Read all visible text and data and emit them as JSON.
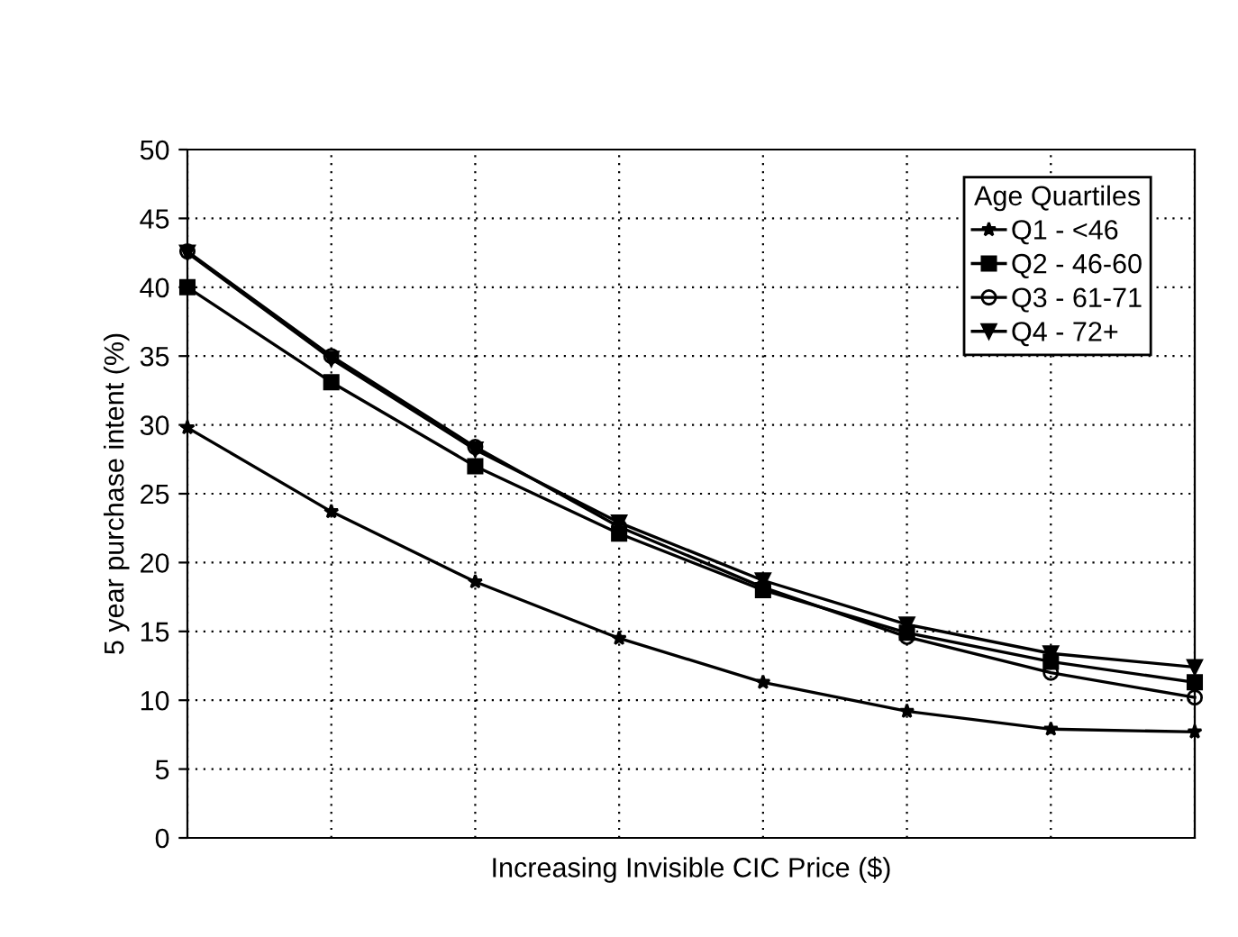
{
  "chart_data": {
    "type": "line",
    "xlabel": "Increasing Invisible CIC Price ($)",
    "ylabel": "5 year purchase intent (%)",
    "legend_title": "Age Quartiles",
    "legend": "top right",
    "grid": true,
    "categories": [
      null,
      null,
      null,
      null,
      null,
      null,
      null,
      null
    ],
    "ylim": [
      0,
      50
    ],
    "yticks": [
      0,
      5,
      10,
      15,
      20,
      25,
      30,
      35,
      40,
      45,
      50
    ],
    "series": [
      {
        "name": "Q1 - <46",
        "color": "#000000",
        "marker": "star",
        "values": [
          29.8,
          23.7,
          18.6,
          14.5,
          11.3,
          9.2,
          7.9,
          7.7
        ]
      },
      {
        "name": "Q2 - 46-60",
        "color": "#000000",
        "marker": "square",
        "values": [
          40,
          33.1,
          27,
          22.1,
          18,
          14.9,
          12.8,
          11.3
        ]
      },
      {
        "name": "Q3 - 61-71",
        "color": "#000000",
        "marker": "circle",
        "values": [
          42.6,
          35,
          28.4,
          22.6,
          18.2,
          14.6,
          12,
          10.2
        ]
      },
      {
        "name": "Q4 - 72+",
        "color": "#000000",
        "marker": "triangle",
        "values": [
          42.5,
          34.8,
          28.2,
          22.9,
          18.7,
          15.5,
          13.4,
          12.4
        ]
      }
    ]
  }
}
